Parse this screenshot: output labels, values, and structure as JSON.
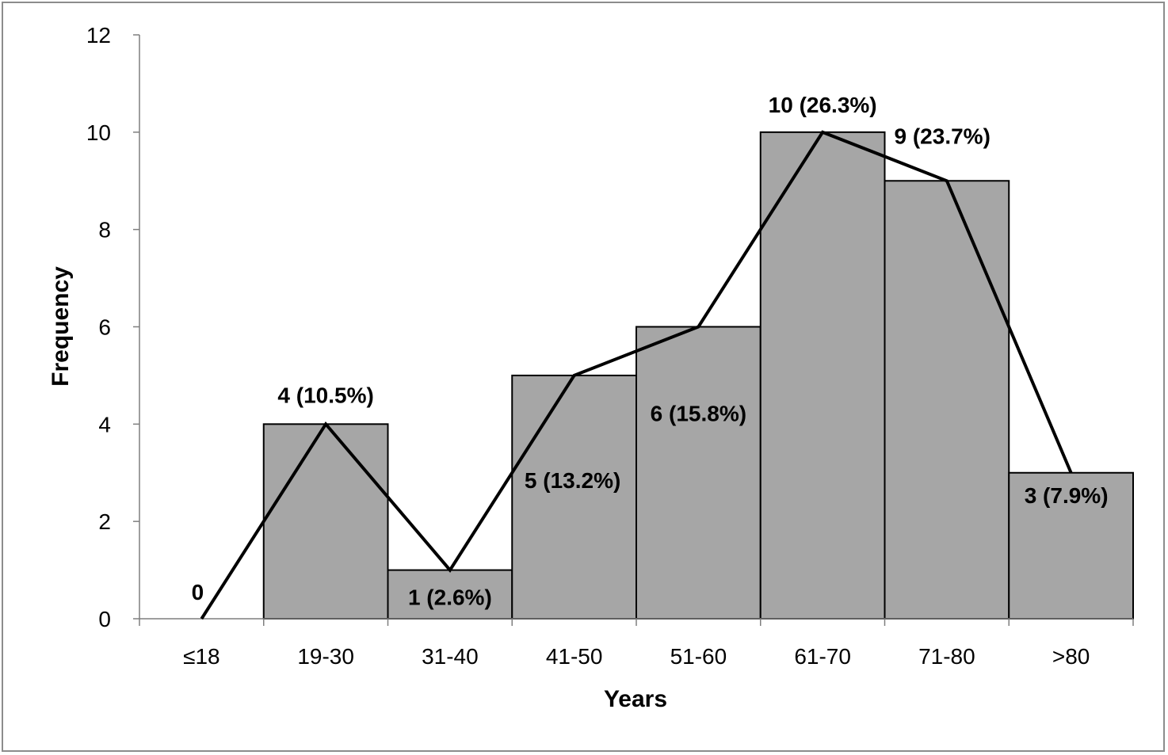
{
  "chart_data": {
    "type": "bar",
    "categories": [
      "≤18",
      "19-30",
      "31-40",
      "41-50",
      "51-60",
      "61-70",
      "71-80",
      ">80"
    ],
    "values": [
      0,
      4,
      1,
      5,
      6,
      10,
      9,
      3
    ],
    "line_overlay": true,
    "data_labels": [
      "0",
      "4 (10.5%)",
      "1 (2.6%)",
      "5 (13.2%)",
      "6 (15.8%)",
      "10 (26.3%)",
      "9 (23.7%)",
      "3 (7.9%)"
    ],
    "xlabel": "Years",
    "ylabel": "Frequency",
    "ylim": [
      0,
      12
    ],
    "yticks": [
      0,
      2,
      4,
      6,
      8,
      10,
      12
    ],
    "grid": false,
    "colors": {
      "bar_fill": "#a6a6a6",
      "bar_stroke": "#000000",
      "line": "#000000",
      "axis": "#7f7f7f"
    }
  }
}
